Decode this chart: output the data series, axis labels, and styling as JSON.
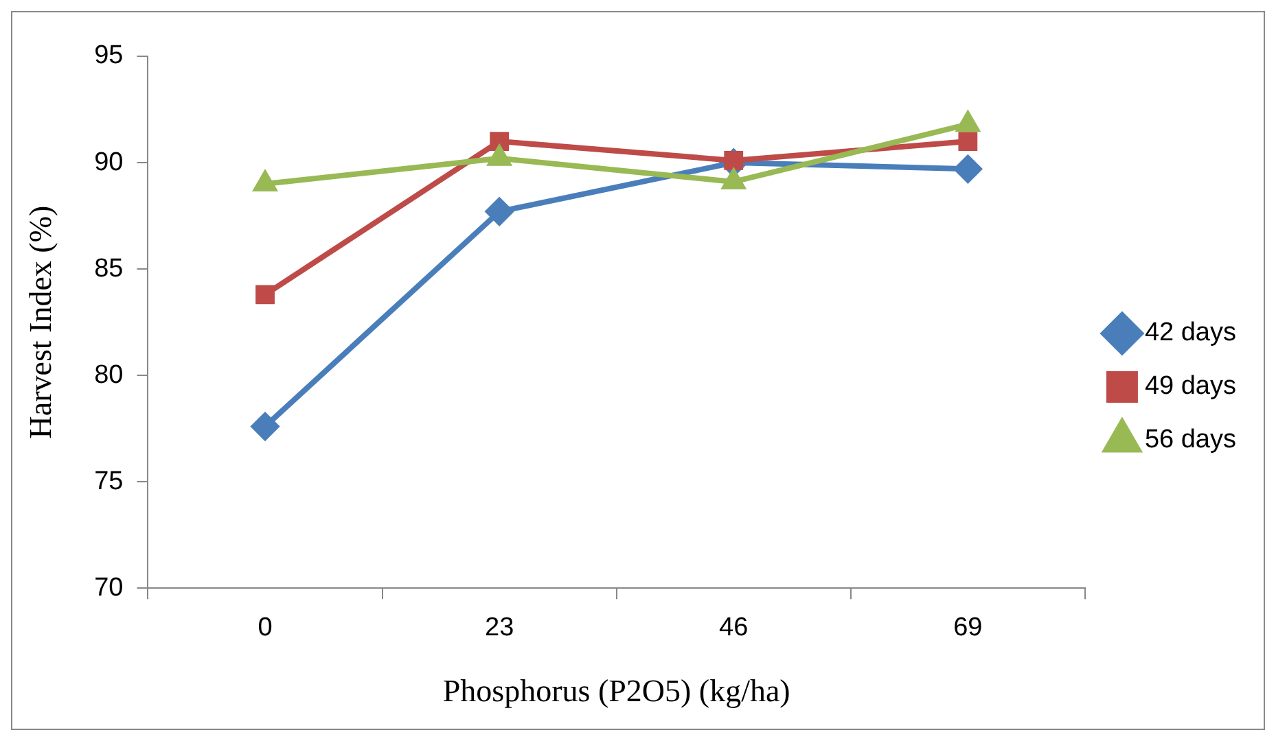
{
  "chart_data": {
    "type": "line",
    "xlabel": "Phosphorus (P2O5) (kg/ha)",
    "ylabel": "Harvest Index (%)",
    "categories": [
      "0",
      "23",
      "46",
      "69"
    ],
    "ylim": [
      70,
      95
    ],
    "yticks": [
      70,
      75,
      80,
      85,
      90,
      95
    ],
    "grid": false,
    "legend": "right",
    "line_style": "solid",
    "series": [
      {
        "name": "42 days",
        "color": "#4a7ebb",
        "marker": "diamond",
        "values": [
          77.6,
          87.7,
          90.0,
          89.7
        ]
      },
      {
        "name": "49 days",
        "color": "#be4b48",
        "marker": "square",
        "values": [
          83.8,
          91.0,
          90.1,
          91.0
        ]
      },
      {
        "name": "56 days",
        "color": "#98b954",
        "marker": "triangle",
        "values": [
          89.0,
          90.2,
          89.1,
          91.8
        ]
      }
    ]
  }
}
